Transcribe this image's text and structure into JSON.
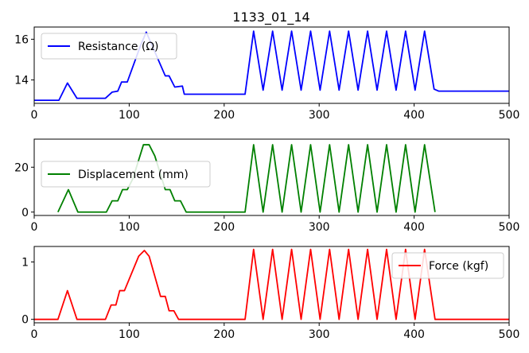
{
  "figure": {
    "title": "1133_01_14"
  },
  "chart_data": [
    {
      "type": "line",
      "xlim": [
        0,
        500
      ],
      "ylim": [
        12.85,
        16.6
      ],
      "x_ticks": [
        0,
        100,
        200,
        300,
        400,
        500
      ],
      "x_tick_labels": [
        "0",
        "100",
        "200",
        "300",
        "400",
        "500"
      ],
      "y_ticks": [
        14,
        16
      ],
      "y_tick_labels": [
        "14",
        "16"
      ],
      "legend_position": "upper left",
      "series": [
        {
          "name": "Resistance (Ω)",
          "color": "#0000ff",
          "x": [
            0,
            26,
            35,
            45,
            75,
            82,
            88,
            92,
            98,
            112,
            118,
            124,
            138,
            142,
            148,
            156,
            158,
            220,
            222,
            231,
            241,
            251,
            261,
            271,
            281,
            291,
            301,
            311,
            321,
            331,
            341,
            351,
            361,
            371,
            381,
            391,
            401,
            411,
            421,
            426,
            500
          ],
          "y": [
            13.0,
            13.0,
            13.85,
            13.1,
            13.1,
            13.4,
            13.45,
            13.9,
            13.9,
            15.7,
            16.35,
            15.7,
            14.2,
            14.2,
            13.65,
            13.7,
            13.3,
            13.3,
            13.3,
            16.4,
            13.5,
            16.4,
            13.5,
            16.4,
            13.5,
            16.4,
            13.5,
            16.4,
            13.5,
            16.4,
            13.5,
            16.4,
            13.5,
            16.4,
            13.5,
            16.4,
            13.5,
            16.4,
            13.55,
            13.45,
            13.45
          ]
        }
      ]
    },
    {
      "type": "line",
      "xlim": [
        0,
        500
      ],
      "ylim": [
        -1.5,
        32.5
      ],
      "x_ticks": [
        0,
        100,
        200,
        300,
        400,
        500
      ],
      "x_tick_labels": [
        "0",
        "100",
        "200",
        "300",
        "400",
        "500"
      ],
      "y_ticks": [
        0,
        20
      ],
      "y_tick_labels": [
        "0",
        "20"
      ],
      "legend_position": "center left",
      "series": [
        {
          "name": "Displacement (mm)",
          "color": "#008000",
          "x": [
            25,
            36,
            46,
            76,
            82,
            88,
            93,
            98,
            104,
            115,
            121,
            127,
            138,
            143,
            148,
            154,
            160,
            222,
            231,
            241,
            251,
            261,
            271,
            281,
            291,
            301,
            311,
            321,
            331,
            341,
            351,
            361,
            371,
            381,
            391,
            401,
            411,
            422
          ],
          "y": [
            0,
            10,
            0,
            0,
            5,
            5,
            10,
            10,
            15,
            30,
            30,
            25,
            10,
            10,
            5,
            5,
            0,
            0,
            30,
            0,
            30,
            0,
            30,
            0,
            30,
            0,
            30,
            0,
            30,
            0,
            30,
            0,
            30,
            0,
            30,
            0,
            30,
            0
          ]
        }
      ]
    },
    {
      "type": "line",
      "xlim": [
        0,
        500
      ],
      "ylim": [
        -0.06,
        1.27
      ],
      "x_ticks": [
        0,
        100,
        200,
        300,
        400,
        500
      ],
      "x_tick_labels": [
        "0",
        "100",
        "200",
        "300",
        "400",
        "500"
      ],
      "y_ticks": [
        0,
        1
      ],
      "y_tick_labels": [
        "0",
        "1"
      ],
      "legend_position": "upper right",
      "series": [
        {
          "name": "Force (kgf)",
          "color": "#ff0000",
          "x": [
            0,
            25,
            35,
            45,
            75,
            81,
            86,
            90,
            95,
            110,
            116,
            121,
            133,
            138,
            142,
            147,
            152,
            157,
            222,
            231,
            241,
            251,
            261,
            271,
            281,
            291,
            301,
            311,
            321,
            331,
            341,
            351,
            361,
            371,
            381,
            391,
            401,
            411,
            422,
            500
          ],
          "y": [
            0,
            0,
            0.5,
            0,
            0,
            0.25,
            0.25,
            0.5,
            0.5,
            1.1,
            1.2,
            1.1,
            0.4,
            0.4,
            0.15,
            0.15,
            0,
            0,
            0,
            1.22,
            0,
            1.22,
            0,
            1.22,
            0,
            1.22,
            0,
            1.22,
            0,
            1.22,
            0,
            1.22,
            0,
            1.22,
            0,
            1.22,
            0,
            1.22,
            0,
            0
          ]
        }
      ]
    }
  ]
}
